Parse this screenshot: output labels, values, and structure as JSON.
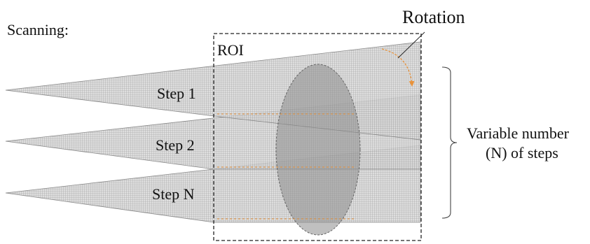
{
  "labels": {
    "scanning": "Scanning:",
    "rotation": "Rotation",
    "roi": "ROI",
    "step1": "Step 1",
    "step2": "Step 2",
    "stepN": "Step N",
    "variable_line1": "Variable number",
    "variable_line2": "(N) of steps"
  },
  "colors": {
    "beam_fill": "#d4d4d4",
    "beam_line": "#7a7a7a",
    "ellipse": "#8c8c8c",
    "arrow": "#e8923a",
    "text": "#111111"
  }
}
